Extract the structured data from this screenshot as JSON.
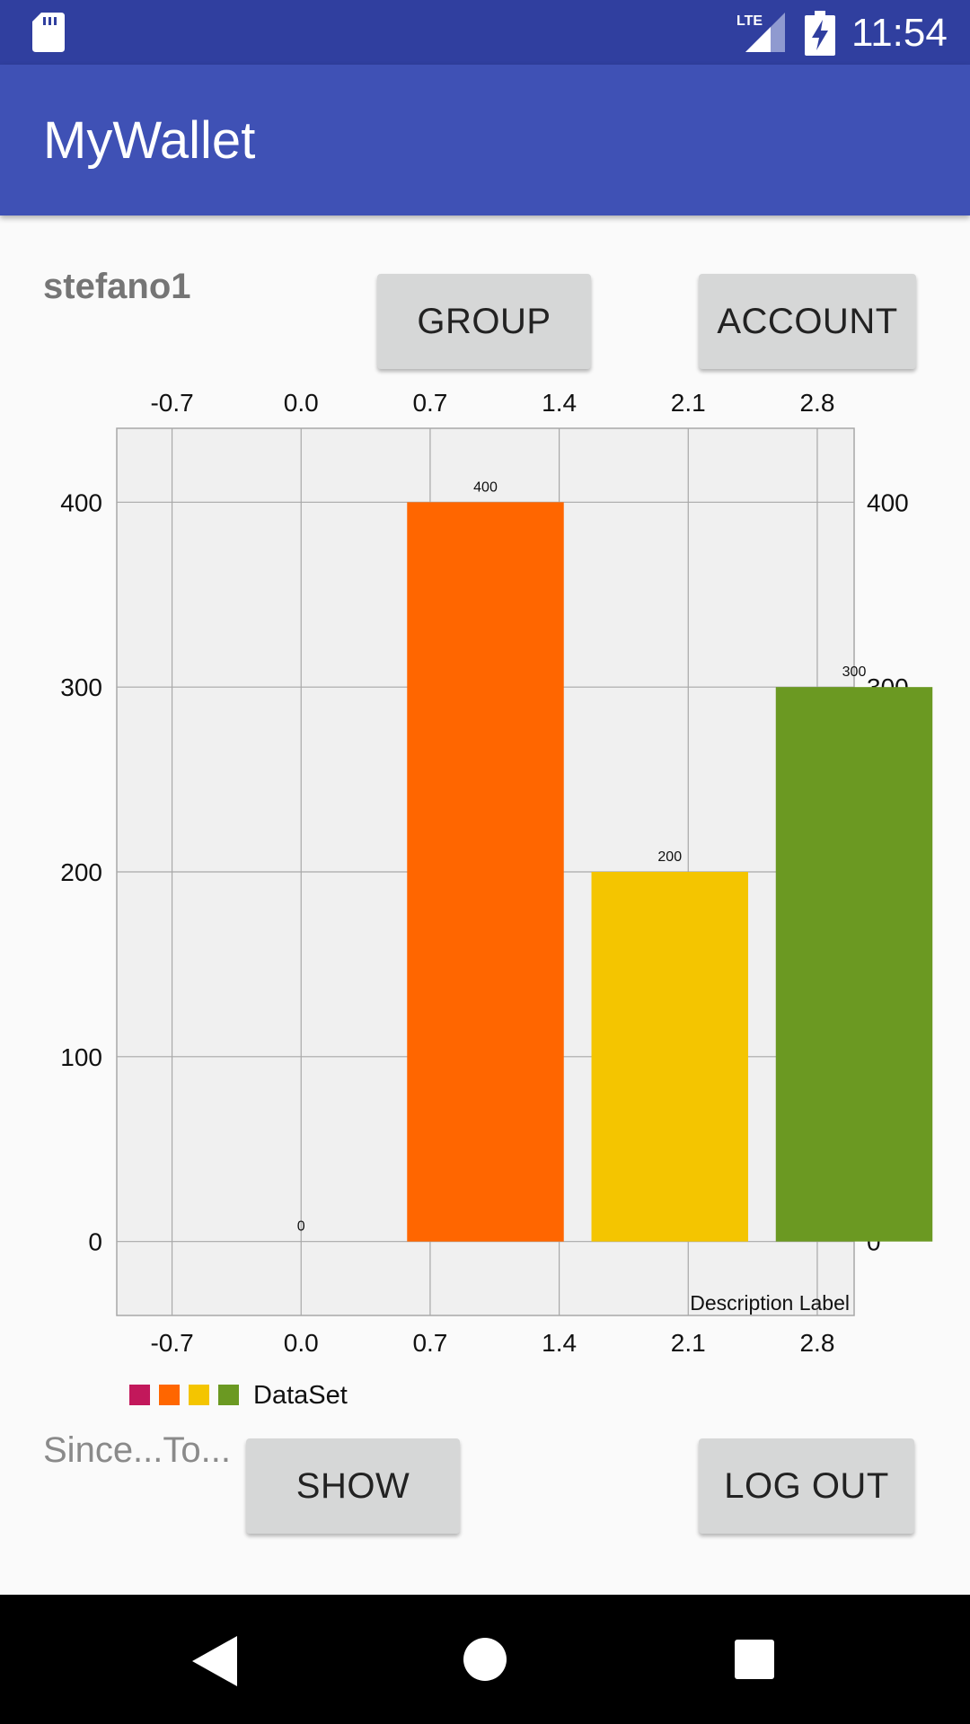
{
  "status_bar": {
    "time": "11:54",
    "network": "LTE",
    "icons": [
      "sd-card-icon",
      "lte-signal-icon",
      "battery-charging-icon"
    ]
  },
  "app_bar": {
    "title": "MyWallet"
  },
  "user": {
    "name": "stefano1"
  },
  "buttons": {
    "group": "GROUP",
    "account": "ACCOUNT",
    "show": "SHOW",
    "logout": "LOG OUT"
  },
  "range_hint": "Since...To...",
  "colors": {
    "status_bar": "#303f9f",
    "app_bar": "#3f51b5",
    "chart_background": "#f0f0f0",
    "grid": "#a8a8a8"
  },
  "chart_data": {
    "type": "bar",
    "x_ticks": [
      "-0.7",
      "0.0",
      "0.7",
      "1.4",
      "2.1",
      "2.8"
    ],
    "x_tick_values": [
      -0.7,
      0.0,
      0.7,
      1.4,
      2.1,
      2.8
    ],
    "y_ticks": [
      "0",
      "100",
      "200",
      "300",
      "400"
    ],
    "y_tick_values": [
      0,
      100,
      200,
      300,
      400
    ],
    "xlim": [
      -1.0,
      3.0
    ],
    "ylim": [
      -40,
      440
    ],
    "bar_width": 0.85,
    "x": [
      0,
      1,
      2,
      3
    ],
    "values": [
      0,
      400,
      200,
      300
    ],
    "value_labels": [
      "0",
      "400",
      "200",
      "300"
    ],
    "bar_colors": [
      "#c2185b",
      "#ff6600",
      "#f4c500",
      "#6b9922"
    ],
    "legend": {
      "label": "DataSet",
      "colors": [
        "#c2185b",
        "#ff6600",
        "#f4c500",
        "#6b9922"
      ],
      "position": "bottom-left"
    },
    "description": "Description Label",
    "grid": true,
    "x_axis_position": "top-and-bottom",
    "y_axis_position": "left-and-right"
  },
  "nav_bar": {
    "icons": [
      "back-icon",
      "home-icon",
      "recents-icon"
    ]
  }
}
